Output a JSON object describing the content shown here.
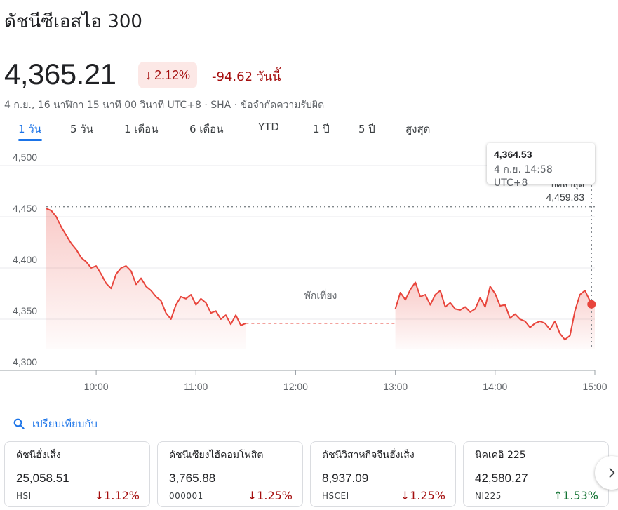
{
  "title": "ดัชนีซีเอสไอ 300",
  "price": "4,365.21",
  "change_pct": "2.12%",
  "change_abs": "-94.62 วันนี้",
  "meta": "4 ก.ย., 16 นาฬิกา 15 นาที 00 วินาที UTC+8 · SHA · ข้อจำกัดความรับผิด",
  "tabs": [
    "1 วัน",
    "5 วัน",
    "1 เดือน",
    "6 เดือน",
    "YTD",
    "1 ปี",
    "5 ปี",
    "สูงสุด"
  ],
  "active_tab": "1 วัน",
  "tooltip": {
    "value": "4,364.53",
    "time": "4 ก.ย. 14:58 UTC+8"
  },
  "prev_close": {
    "label": "ปิดล่าสุด",
    "value": "4,459.83"
  },
  "lunch_break_label": "พักเที่ยง",
  "compare_label": "เปรียบเทียบกับ",
  "colors": {
    "down": "#a50e0e",
    "up": "#137333",
    "line": "#e8453c",
    "accent": "#1a73e8"
  },
  "icons": {
    "compare": "search-icon",
    "down": "arrow-down-icon",
    "up": "arrow-up-icon",
    "next": "chevron-right-icon"
  },
  "cards": [
    {
      "name": "ดัชนีฮั่งเส็ง",
      "price": "25,058.51",
      "symbol": "HSI",
      "change": "1.12%",
      "direction": "down"
    },
    {
      "name": "ดัชนีเซียงไฮ้คอมโพสิต",
      "price": "3,765.88",
      "symbol": "000001",
      "change": "1.25%",
      "direction": "down"
    },
    {
      "name": "ดัชนีวิสาหกิจจีนฮั่งเส็ง",
      "price": "8,937.09",
      "symbol": "HSCEI",
      "change": "1.25%",
      "direction": "down"
    },
    {
      "name": "นิคเคอิ 225",
      "price": "42,580.27",
      "symbol": "NI225",
      "change": "1.53%",
      "direction": "up"
    }
  ],
  "chart_data": {
    "type": "line",
    "xlabel": "",
    "ylabel": "",
    "ylim": [
      4300,
      4500
    ],
    "yticks": [
      "4,500",
      "4,450",
      "4,400",
      "4,350",
      "4,300"
    ],
    "ytick_values": [
      4500,
      4450,
      4400,
      4350,
      4300
    ],
    "xticks": [
      "10:00",
      "11:00",
      "12:00",
      "13:00",
      "14:00",
      "15:00"
    ],
    "xtick_values": [
      "10:00",
      "11:00",
      "12:00",
      "13:00",
      "14:00",
      "15:00"
    ],
    "xlim": [
      "09:30",
      "15:00"
    ],
    "prev_close": 4459.83,
    "lunch_break": [
      "11:30",
      "13:00"
    ],
    "current": 4365.21,
    "highlight": {
      "time": "14:58",
      "value": 4364.53
    },
    "grid": true,
    "series": [
      {
        "x": [
          "09:30",
          "09:33",
          "09:36",
          "09:39",
          "09:42",
          "09:45",
          "09:48",
          "09:51",
          "09:54",
          "09:57",
          "10:00",
          "10:03",
          "10:06",
          "10:09",
          "10:12",
          "10:15",
          "10:18",
          "10:21",
          "10:24",
          "10:27",
          "10:30",
          "10:33",
          "10:36",
          "10:39",
          "10:42",
          "10:45",
          "10:48",
          "10:51",
          "10:54",
          "10:57",
          "11:00",
          "11:03",
          "11:06",
          "11:09",
          "11:12",
          "11:15",
          "11:18",
          "11:21",
          "11:24",
          "11:27",
          "11:30",
          "13:00",
          "13:03",
          "13:06",
          "13:09",
          "13:12",
          "13:15",
          "13:18",
          "13:21",
          "13:24",
          "13:27",
          "13:30",
          "13:33",
          "13:36",
          "13:39",
          "13:42",
          "13:45",
          "13:48",
          "13:51",
          "13:54",
          "13:57",
          "14:00",
          "14:03",
          "14:06",
          "14:09",
          "14:12",
          "14:15",
          "14:18",
          "14:21",
          "14:24",
          "14:27",
          "14:30",
          "14:33",
          "14:36",
          "14:39",
          "14:42",
          "14:45",
          "14:48",
          "14:51",
          "14:54",
          "14:57",
          "15:00"
        ],
        "values": [
          4458,
          4456,
          4450,
          4440,
          4432,
          4424,
          4418,
          4410,
          4406,
          4400,
          4402,
          4394,
          4385,
          4380,
          4394,
          4400,
          4402,
          4397,
          4384,
          4390,
          4382,
          4378,
          4372,
          4368,
          4356,
          4350,
          4364,
          4372,
          4370,
          4374,
          4364,
          4370,
          4366,
          4356,
          4358,
          4350,
          4354,
          4345,
          4354,
          4344,
          4346,
          4360,
          4376,
          4369,
          4379,
          4386,
          4372,
          4374,
          4364,
          4374,
          4378,
          4362,
          4366,
          4360,
          4359,
          4362,
          4357,
          4360,
          4371,
          4362,
          4382,
          4375,
          4363,
          4364,
          4351,
          4355,
          4350,
          4348,
          4342,
          4346,
          4348,
          4346,
          4340,
          4348,
          4336,
          4330,
          4334,
          4358,
          4374,
          4378,
          4368,
          4365
        ]
      }
    ]
  }
}
